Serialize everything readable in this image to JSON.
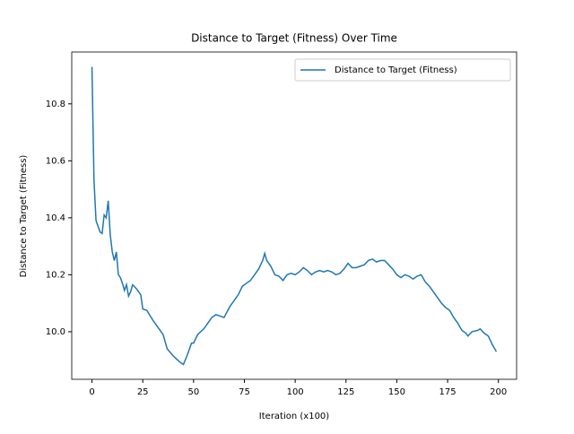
{
  "chart_data": {
    "type": "line",
    "title": "Distance to Target (Fitness) Over Time",
    "xlabel": "Iteration (x100)",
    "ylabel": "Distance to Target (Fitness)",
    "x": [
      0,
      1,
      2,
      3,
      4,
      5,
      6,
      7,
      8,
      9,
      10,
      11,
      12,
      13,
      14,
      15,
      16,
      17,
      18,
      19,
      20,
      22,
      24,
      25,
      27,
      30,
      32,
      35,
      37,
      40,
      43,
      45,
      47,
      49,
      50,
      52,
      55,
      57,
      59,
      61,
      63,
      65,
      68,
      70,
      72,
      74,
      76,
      78,
      80,
      82,
      84,
      85,
      86,
      88,
      90,
      92,
      94,
      96,
      98,
      100,
      102,
      104,
      106,
      108,
      110,
      112,
      114,
      116,
      118,
      120,
      122,
      124,
      126,
      128,
      130,
      132,
      134,
      136,
      138,
      140,
      142,
      144,
      146,
      148,
      150,
      152,
      154,
      156,
      158,
      160,
      162,
      164,
      166,
      168,
      170,
      172,
      174,
      176,
      178,
      180,
      182,
      184,
      185,
      187,
      190,
      191,
      193,
      195,
      197,
      199
    ],
    "series": [
      {
        "name": "Distance to Target (Fitness)",
        "color": "#1f77b4",
        "values": [
          10.93,
          10.53,
          10.39,
          10.37,
          10.35,
          10.345,
          10.41,
          10.4,
          10.46,
          10.34,
          10.28,
          10.25,
          10.28,
          10.2,
          10.19,
          10.17,
          10.145,
          10.165,
          10.125,
          10.14,
          10.165,
          10.15,
          10.13,
          10.08,
          10.075,
          10.04,
          10.02,
          9.99,
          9.94,
          9.915,
          9.895,
          9.885,
          9.92,
          9.96,
          9.96,
          9.99,
          10.01,
          10.03,
          10.05,
          10.06,
          10.055,
          10.05,
          10.09,
          10.11,
          10.13,
          10.16,
          10.17,
          10.18,
          10.2,
          10.22,
          10.25,
          10.275,
          10.25,
          10.23,
          10.2,
          10.195,
          10.18,
          10.2,
          10.205,
          10.2,
          10.21,
          10.225,
          10.215,
          10.2,
          10.21,
          10.215,
          10.21,
          10.215,
          10.21,
          10.2,
          10.205,
          10.22,
          10.24,
          10.225,
          10.225,
          10.23,
          10.235,
          10.25,
          10.255,
          10.245,
          10.25,
          10.25,
          10.235,
          10.22,
          10.2,
          10.19,
          10.2,
          10.195,
          10.185,
          10.195,
          10.2,
          10.175,
          10.16,
          10.14,
          10.12,
          10.1,
          10.085,
          10.075,
          10.05,
          10.03,
          10.005,
          9.995,
          9.985,
          10.0,
          10.005,
          10.01,
          9.995,
          9.985,
          9.955,
          9.93
        ]
      }
    ],
    "xlim": [
      -9.95,
      208.95
    ],
    "xticks": [
      0,
      25,
      50,
      75,
      100,
      125,
      150,
      175,
      200
    ],
    "ylim": [
      9.833,
      10.982
    ],
    "yticks": [
      {
        "value": 10,
        "label": "10.0"
      },
      10.2,
      10.4,
      10.6,
      10.8
    ],
    "legend": "upper right"
  }
}
